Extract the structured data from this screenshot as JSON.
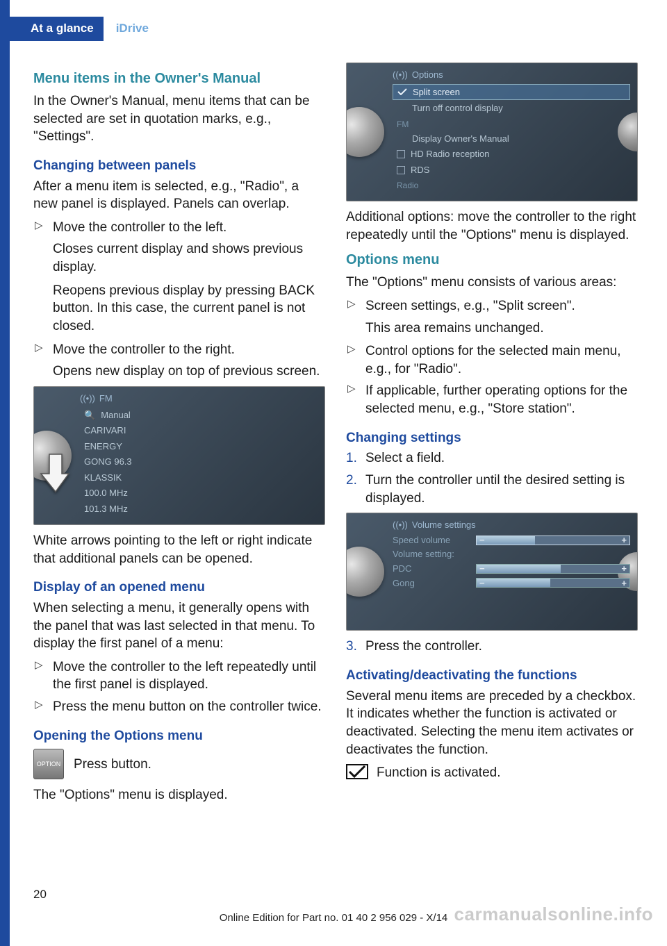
{
  "header": {
    "tab": "At a glance",
    "section": "iDrive"
  },
  "left": {
    "h_menu_items": "Menu items in the Owner's Manual",
    "p_menu_items": "In the Owner's Manual, menu items that can be selected are set in quotation marks, e.g., \"Settings\".",
    "h_changing_panels": "Changing between panels",
    "p_changing_panels": "After a menu item is selected, e.g., \"Radio\", a new panel is displayed. Panels can overlap.",
    "li_move_left": "Move the controller to the left.",
    "p_closes": "Closes current display and shows previous display.",
    "p_reopens": "Reopens previous display by pressing BACK button. In this case, the current panel is not closed.",
    "li_move_right": "Move the controller to the right.",
    "p_opens_new": "Opens new display on top of previous screen.",
    "fm_screen": {
      "title": "FM",
      "items": [
        "Manual",
        "CARIVARI",
        "ENERGY",
        "GONG 96.3",
        "KLASSIK",
        "100.0  MHz",
        "101.3  MHz"
      ]
    },
    "p_white_arrows": "White arrows pointing to the left or right indicate that additional panels can be opened.",
    "h_display_opened": "Display of an opened menu",
    "p_display_opened": "When selecting a menu, it generally opens with the panel that was last selected in that menu. To display the first panel of a menu:",
    "li_move_left_rep": "Move the controller to the left repeatedly until the first panel is displayed.",
    "li_press_menu": "Press the menu button on the controller twice.",
    "h_opening_options": "Opening the Options menu",
    "option_btn": "OPTION",
    "p_press_button": "Press button.",
    "p_options_displayed": "The \"Options\" menu is displayed."
  },
  "right": {
    "options_screen": {
      "title": "Options",
      "split": "Split screen",
      "turnoff": "Turn off control display",
      "fm": "FM",
      "display_manual": "Display Owner's Manual",
      "hd": "HD Radio reception",
      "rds": "RDS",
      "radio": "Radio"
    },
    "p_additional": "Additional options: move the controller to the right repeatedly until the \"Options\" menu is displayed.",
    "h_options_menu": "Options menu",
    "p_options_consists": "The \"Options\" menu consists of various areas:",
    "li_screen_settings": "Screen settings, e.g., \"Split screen\".",
    "p_area_unchanged": "This area remains unchanged.",
    "li_control_options": "Control options for the selected main menu, e.g., for \"Radio\".",
    "li_if_applicable": "If applicable, further operating options for the selected menu, e.g., \"Store station\".",
    "h_changing_settings": "Changing settings",
    "n1_select": "Select a field.",
    "n2_turn": "Turn the controller until the desired setting is displayed.",
    "vol_screen": {
      "title": "Volume settings",
      "speed": "Speed volume",
      "setting": "Volume setting:",
      "pdc": "PDC",
      "gong": "Gong",
      "speed_fill": 38,
      "pdc_fill": 55,
      "gong_fill": 48
    },
    "n3_press": "Press the controller.",
    "h_activating": "Activating/deactivating the functions",
    "p_checkbox": "Several menu items are preceded by a checkbox. It indicates whether the function is activated or deactivated. Selecting the menu item activates or deactivates the function.",
    "p_func_activated": "Function is activated."
  },
  "page_num": "20",
  "footer": "Online Edition for Part no. 01 40 2 956 029 - X/14",
  "watermark": "carmanualsonline.info"
}
